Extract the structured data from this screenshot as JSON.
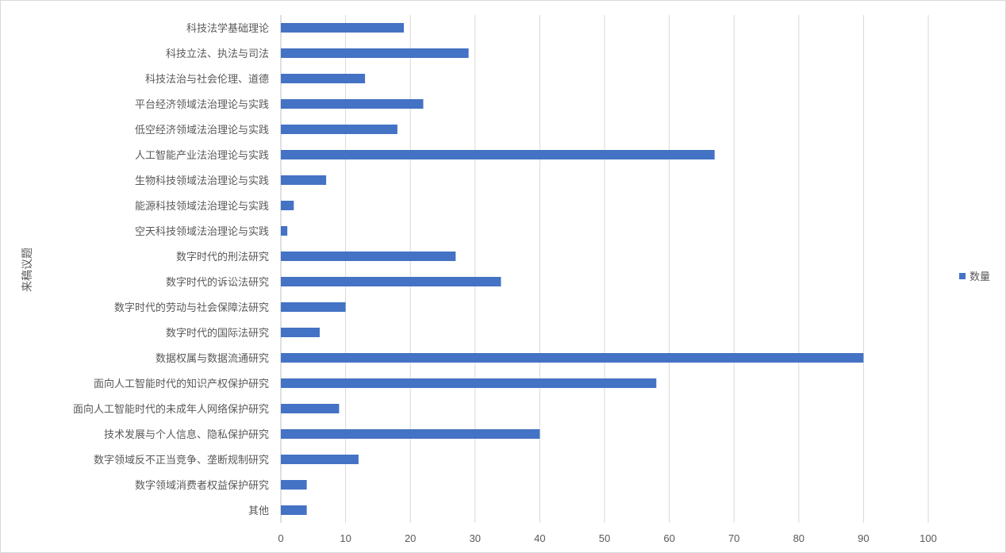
{
  "chart_data": {
    "type": "bar",
    "orientation": "horizontal",
    "title": "",
    "xlabel": "",
    "ylabel": "来稿议题",
    "xlim": [
      0,
      100
    ],
    "x_ticks": [
      0,
      10,
      20,
      30,
      40,
      50,
      60,
      70,
      80,
      90,
      100
    ],
    "grid": true,
    "legend_position": "right",
    "bar_color": "#4472C4",
    "categories": [
      "科技法学基础理论",
      "科技立法、执法与司法",
      "科技法治与社会伦理、道德",
      "平台经济领域法治理论与实践",
      "低空经济领域法治理论与实践",
      "人工智能产业法治理论与实践",
      "生物科技领域法治理论与实践",
      "能源科技领域法治理论与实践",
      "空天科技领域法治理论与实践",
      "数字时代的刑法研究",
      "数字时代的诉讼法研究",
      "数字时代的劳动与社会保障法研究",
      "数字时代的国际法研究",
      "数据权属与数据流通研究",
      "面向人工智能时代的知识产权保护研究",
      "面向人工智能时代的未成年人网络保护研究",
      "技术发展与个人信息、隐私保护研究",
      "数字领域反不正当竞争、垄断规制研究",
      "数字领域消费者权益保护研究",
      "其他"
    ],
    "series": [
      {
        "name": "数量",
        "values": [
          19,
          29,
          13,
          22,
          18,
          67,
          7,
          2,
          1,
          27,
          34,
          10,
          6,
          90,
          58,
          9,
          40,
          12,
          4,
          4
        ]
      }
    ]
  }
}
